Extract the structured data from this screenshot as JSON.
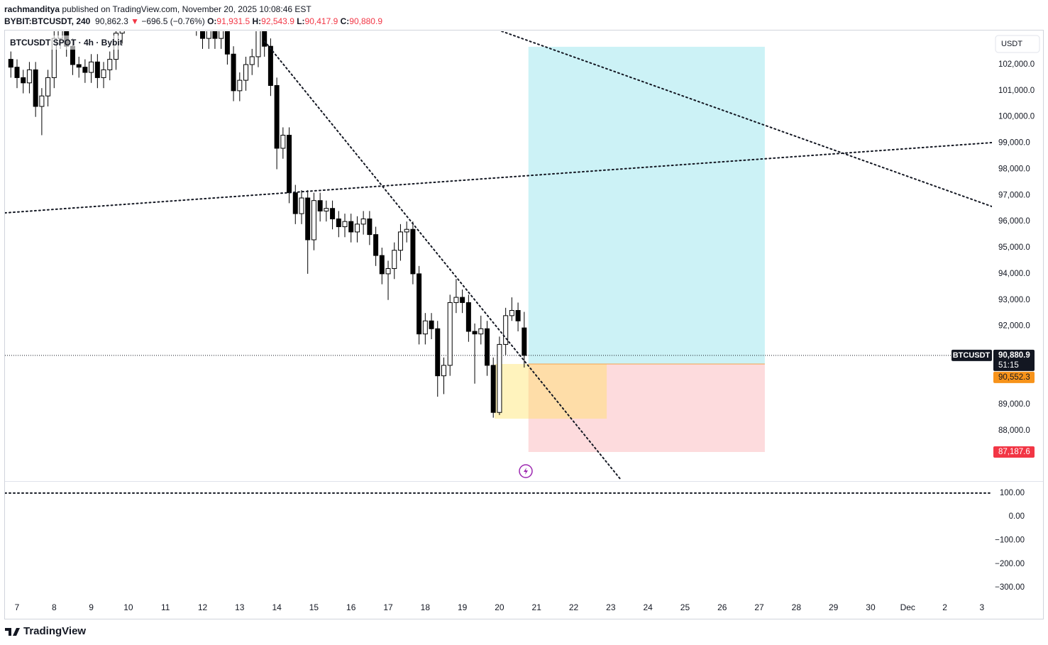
{
  "header": {
    "author": "rachmanditya",
    "published": "published on TradingView.com, November 20, 2025 10:08:46 EST",
    "symbol": "BYBIT:BTCUSDT, 240",
    "price": "90,862.3",
    "arrow": "▼",
    "change": "−696.5 (−0.76%)",
    "o_label": "O:",
    "o": "91,931.5",
    "h_label": "H:",
    "h": "92,543.9",
    "l_label": "L:",
    "l": "90,417.9",
    "c_label": "C:",
    "c": "90,880.9"
  },
  "footer": {
    "brand": "TradingView"
  },
  "chart_data": {
    "type": "candlestick",
    "legend": "BTCUSDT SPOT · 4h · Bybit",
    "currency": "USDT",
    "up_color": "#ffffff",
    "down_color": "#000000",
    "x": [
      6.833,
      7,
      7.167,
      7.333,
      7.5,
      7.667,
      7.833,
      8,
      8.167,
      8.333,
      8.5,
      8.667,
      8.833,
      9,
      9.167,
      9.333,
      9.5,
      9.667,
      9.833,
      10,
      10.167,
      10.333,
      10.5,
      10.667,
      10.833,
      11,
      11.167,
      11.333,
      11.5,
      11.667,
      11.833,
      12,
      12.167,
      12.333,
      12.5,
      12.667,
      12.833,
      13,
      13.167,
      13.333,
      13.5,
      13.667,
      13.833,
      14,
      14.167,
      14.333,
      14.5,
      14.667,
      14.833,
      15,
      15.167,
      15.333,
      15.5,
      15.667,
      15.833,
      16,
      16.167,
      16.333,
      16.5,
      16.667,
      16.833,
      17,
      17.167,
      17.333,
      17.5,
      17.667,
      17.833,
      18,
      18.167,
      18.333,
      18.5,
      18.667,
      18.833,
      19,
      19.167,
      19.333,
      19.5,
      19.667,
      19.833,
      20,
      20.167,
      20.333,
      20.5,
      20.667
    ],
    "open": [
      102200,
      101900,
      101500,
      101300,
      101800,
      100400,
      100800,
      101500,
      103000,
      103500,
      102700,
      102000,
      101900,
      101700,
      102100,
      101500,
      101800,
      102200,
      103200,
      104000,
      104500,
      105000,
      104800,
      105300,
      104600,
      105000,
      104700,
      104200,
      104500,
      104000,
      103900,
      103500,
      103000,
      103300,
      103000,
      103800,
      102400,
      101000,
      101400,
      102000,
      102300,
      103500,
      102700,
      101200,
      98800,
      99300,
      97100,
      96300,
      96900,
      95300,
      96800,
      96400,
      96500,
      96100,
      95800,
      96000,
      95600,
      95900,
      96100,
      95500,
      94700,
      94000,
      94200,
      94900,
      95600,
      95700,
      94000,
      91700,
      92200,
      91900,
      90100,
      90500,
      92900,
      93100,
      92900,
      91800,
      91700,
      91900,
      90500,
      88700,
      91300,
      92400,
      92600,
      91931.5
    ],
    "high": [
      102500,
      102200,
      101800,
      102100,
      102100,
      101100,
      101800,
      103300,
      103800,
      103800,
      103000,
      102300,
      102200,
      102400,
      102400,
      102100,
      102500,
      103500,
      104300,
      104800,
      105300,
      105300,
      105600,
      105600,
      105300,
      105300,
      105000,
      104800,
      104800,
      104300,
      104200,
      103800,
      103600,
      103600,
      104100,
      104100,
      102700,
      101700,
      102300,
      102600,
      103800,
      103800,
      103000,
      101500,
      99600,
      99600,
      97400,
      97200,
      97200,
      97100,
      97100,
      96800,
      96800,
      96400,
      96300,
      96300,
      96200,
      96400,
      96400,
      95800,
      95000,
      94500,
      95200,
      95900,
      96000,
      96000,
      94300,
      92500,
      92500,
      92200,
      90800,
      93200,
      93800,
      93400,
      93200,
      92100,
      92400,
      92200,
      90800,
      91600,
      92700,
      93100,
      92900,
      92543.9
    ],
    "low": [
      101500,
      101100,
      100900,
      100900,
      100000,
      99300,
      100400,
      101100,
      102600,
      102300,
      101600,
      101500,
      101300,
      101300,
      101100,
      101100,
      101400,
      101800,
      102800,
      103600,
      104100,
      104400,
      104400,
      104200,
      104200,
      104300,
      103800,
      103800,
      103600,
      103500,
      103100,
      102600,
      102600,
      102600,
      102600,
      102000,
      100600,
      100600,
      101000,
      101600,
      101900,
      102300,
      100800,
      98000,
      98400,
      96700,
      95900,
      95900,
      94000,
      94900,
      96000,
      96000,
      95700,
      95400,
      95400,
      95200,
      95200,
      95500,
      95100,
      94300,
      93600,
      93000,
      93800,
      94500,
      95200,
      93600,
      91300,
      91300,
      91500,
      89300,
      89400,
      90100,
      92500,
      92500,
      91400,
      89800,
      91300,
      90100,
      88500,
      88600,
      90900,
      92200,
      91800,
      90417.9
    ],
    "close": [
      101900,
      101500,
      101300,
      101800,
      100400,
      100800,
      101500,
      103000,
      103500,
      102700,
      102000,
      101900,
      101700,
      102100,
      101500,
      101800,
      102200,
      103200,
      104000,
      104500,
      105000,
      104800,
      105300,
      104600,
      105000,
      104700,
      104200,
      104500,
      104000,
      103900,
      103500,
      103000,
      103300,
      103000,
      103800,
      102400,
      101000,
      101400,
      102000,
      102300,
      103500,
      102700,
      101200,
      98800,
      99300,
      97100,
      96300,
      96900,
      95300,
      96800,
      96400,
      96500,
      96100,
      95800,
      96000,
      95600,
      95900,
      96100,
      95500,
      94700,
      94000,
      94200,
      94900,
      95600,
      95700,
      94000,
      91700,
      92200,
      91900,
      90100,
      90500,
      92900,
      93100,
      92900,
      91800,
      91700,
      91900,
      90500,
      88700,
      91300,
      92400,
      92600,
      92200,
      90880.9
    ],
    "xlim": [
      6.675,
      33.27
    ],
    "xticks": [
      7,
      8,
      9,
      10,
      11,
      12,
      13,
      14,
      15,
      16,
      17,
      18,
      19,
      20,
      21,
      22,
      23,
      24,
      25,
      26,
      27,
      28,
      29,
      30,
      {
        "value": 31,
        "label": "Dec"
      },
      {
        "value": 32,
        "label": "2"
      },
      {
        "value": 33,
        "label": "3"
      }
    ],
    "ylim": [
      86075,
      103275
    ],
    "yticks": [
      {
        "value": 88000,
        "label": "88,000.0"
      },
      {
        "value": 89000,
        "label": "89,000.0"
      },
      {
        "value": 92000,
        "label": "92,000.0"
      },
      {
        "value": 93000,
        "label": "93,000.0"
      },
      {
        "value": 94000,
        "label": "94,000.0"
      },
      {
        "value": 95000,
        "label": "95,000.0"
      },
      {
        "value": 96000,
        "label": "96,000.0"
      },
      {
        "value": 97000,
        "label": "97,000.0"
      },
      {
        "value": 98000,
        "label": "98,000.0"
      },
      {
        "value": 99000,
        "label": "99,000.0"
      },
      {
        "value": 100000,
        "label": "100,000.0"
      },
      {
        "value": 101000,
        "label": "101,000.0"
      },
      {
        "value": 102000,
        "label": "102,000.0"
      }
    ],
    "last_price": {
      "symbol": "BTCUSDT",
      "value": 90880.9,
      "label": "90,880.9",
      "countdown": "51:15"
    },
    "position": {
      "entry": {
        "value": 90552.3,
        "label": "90,552.3"
      },
      "stop": {
        "value": 87187.6,
        "label": "87,187.6"
      },
      "target": 102680,
      "x": [
        20.78,
        27.15
      ]
    },
    "zone": {
      "x": [
        19.87,
        22.89
      ],
      "y": [
        88460,
        90552.3
      ]
    },
    "trendlines": [
      {
        "x": [
          13.67,
          23.27
        ],
        "y": [
          102895,
          86130
        ]
      },
      {
        "x": [
          20.06,
          33.27
        ],
        "y": [
          103275,
          96574
        ]
      },
      {
        "x": [
          6.675,
          33.27
        ],
        "y": [
          96330,
          99016
        ]
      }
    ],
    "indicator": {
      "ylim": [
        -344.8,
        147.8
      ],
      "yticks": [
        {
          "value": 100,
          "label": "100.00"
        },
        {
          "value": 0,
          "label": "0.00"
        },
        {
          "value": -100,
          "label": "−100.00"
        },
        {
          "value": -200,
          "label": "−200.00"
        },
        {
          "value": -300,
          "label": "−300.00"
        }
      ],
      "line": {
        "x": [
          6.675,
          33.21
        ],
        "y": [
          100,
          100
        ]
      }
    }
  }
}
